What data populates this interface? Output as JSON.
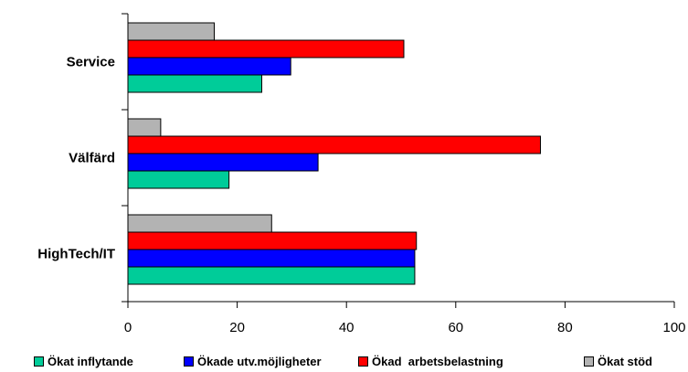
{
  "chart_data": {
    "type": "bar",
    "orientation": "horizontal",
    "categories": [
      "Service",
      "Välfärd",
      "HighTech/IT"
    ],
    "series": [
      {
        "name": "Ökat inflytande",
        "color": "#00cc99",
        "values": [
          24.5,
          18.5,
          52.5
        ]
      },
      {
        "name": "Ökade utv.möjligheter",
        "color": "#0000ff",
        "values": [
          29.8,
          34.8,
          52.5
        ]
      },
      {
        "name": "Ökad  arbetsbelastning",
        "color": "#ff0000",
        "values": [
          50.5,
          75.5,
          52.8
        ]
      },
      {
        "name": "Ökat stöd",
        "color": "#b3b3b3",
        "values": [
          15.8,
          6.0,
          26.3
        ]
      }
    ],
    "xlim": [
      0,
      100
    ],
    "xticks": [
      "0",
      "20",
      "40",
      "60",
      "80",
      "100"
    ],
    "grid": false,
    "legend_position": "bottom"
  }
}
